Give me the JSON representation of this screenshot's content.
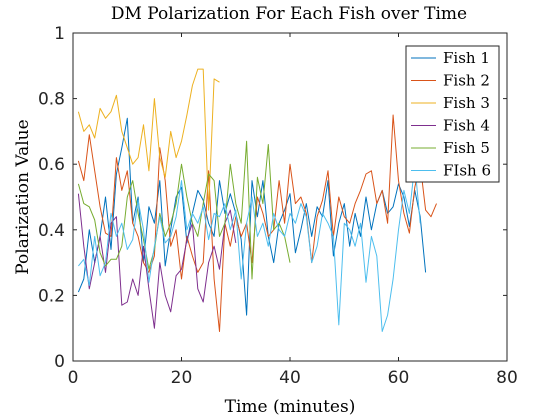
{
  "chart_data": {
    "type": "line",
    "title": "DM Polarization For Each Fish over Time",
    "xlabel": "Time (minutes)",
    "ylabel": "Polarization Value",
    "xlim": [
      0,
      80
    ],
    "ylim": [
      0,
      1
    ],
    "xticks": [
      0,
      20,
      40,
      60,
      80
    ],
    "yticks": [
      0,
      0.2,
      0.4,
      0.6,
      0.8,
      1
    ],
    "xtick_labels": [
      "0",
      "20",
      "40",
      "60",
      "80"
    ],
    "ytick_labels": [
      "0",
      "0.2",
      "0.4",
      "0.6",
      "0.8",
      "1"
    ],
    "grid": false,
    "legend_position": "top-right",
    "series": [
      {
        "name": "Fish 1",
        "color": "#0072BD",
        "x": [
          1,
          2,
          3,
          4,
          5,
          6,
          7,
          8,
          9,
          10,
          11,
          12,
          13,
          14,
          15,
          16,
          17,
          18,
          19,
          20,
          21,
          22,
          23,
          24,
          25,
          26,
          27,
          28,
          29,
          30,
          31,
          32,
          33,
          34,
          35,
          36,
          37,
          38,
          39,
          40,
          41,
          42,
          43,
          44,
          45,
          46,
          47,
          48,
          49,
          50,
          51,
          52,
          53,
          54,
          55,
          56,
          57,
          58,
          59,
          60,
          61,
          62,
          63,
          64,
          65
        ],
        "values": [
          0.21,
          0.25,
          0.4,
          0.3,
          0.38,
          0.5,
          0.34,
          0.57,
          0.65,
          0.74,
          0.42,
          0.5,
          0.3,
          0.47,
          0.42,
          0.55,
          0.29,
          0.4,
          0.5,
          0.53,
          0.36,
          0.45,
          0.52,
          0.49,
          0.42,
          0.38,
          0.55,
          0.45,
          0.51,
          0.45,
          0.37,
          0.14,
          0.55,
          0.44,
          0.55,
          0.38,
          0.3,
          0.42,
          0.46,
          0.51,
          0.33,
          0.4,
          0.48,
          0.38,
          0.47,
          0.44,
          0.55,
          0.32,
          0.42,
          0.48,
          0.35,
          0.45,
          0.38,
          0.5,
          0.4,
          0.48,
          0.52,
          0.45,
          0.47,
          0.54,
          0.5,
          0.41,
          0.52,
          0.44,
          0.27
        ]
      },
      {
        "name": "Fish 2",
        "color": "#D95319",
        "x": [
          1,
          2,
          3,
          4,
          5,
          6,
          7,
          8,
          9,
          10,
          11,
          12,
          13,
          14,
          15,
          16,
          17,
          18,
          19,
          20,
          21,
          22,
          23,
          24,
          25,
          26,
          27,
          28,
          29,
          30,
          31,
          32,
          33,
          34,
          35,
          36,
          37,
          38,
          39,
          40,
          41,
          42,
          43,
          44,
          45,
          46,
          47,
          48,
          49,
          50,
          51,
          52,
          53,
          54,
          55,
          56,
          57,
          58,
          59,
          60,
          61,
          62,
          63,
          64,
          65,
          66,
          67
        ],
        "values": [
          0.61,
          0.55,
          0.69,
          0.58,
          0.47,
          0.39,
          0.38,
          0.62,
          0.52,
          0.58,
          0.42,
          0.38,
          0.3,
          0.27,
          0.32,
          0.65,
          0.55,
          0.35,
          0.4,
          0.25,
          0.38,
          0.32,
          0.27,
          0.3,
          0.58,
          0.25,
          0.09,
          0.42,
          0.35,
          0.44,
          0.38,
          0.42,
          0.3,
          0.5,
          0.45,
          0.38,
          0.4,
          0.55,
          0.42,
          0.6,
          0.48,
          0.5,
          0.45,
          0.3,
          0.44,
          0.49,
          0.58,
          0.38,
          0.5,
          0.44,
          0.42,
          0.48,
          0.52,
          0.57,
          0.58,
          0.48,
          0.52,
          0.42,
          0.75,
          0.55,
          0.45,
          0.39,
          0.53,
          0.6,
          0.46,
          0.44,
          0.48
        ]
      },
      {
        "name": "Fish 3",
        "color": "#EDB120",
        "x": [
          1,
          2,
          3,
          4,
          5,
          6,
          7,
          8,
          9,
          10,
          11,
          12,
          13,
          14,
          15,
          16,
          17,
          18,
          19,
          20,
          21,
          22,
          23,
          24,
          25,
          26,
          27
        ],
        "values": [
          0.76,
          0.7,
          0.72,
          0.68,
          0.77,
          0.74,
          0.76,
          0.81,
          0.7,
          0.65,
          0.6,
          0.62,
          0.72,
          0.58,
          0.8,
          0.62,
          0.56,
          0.7,
          0.62,
          0.67,
          0.75,
          0.84,
          0.89,
          0.89,
          0.46,
          0.86,
          0.85
        ]
      },
      {
        "name": "Fish 4",
        "color": "#7E2F8E",
        "x": [
          1,
          2,
          3,
          4,
          5,
          6,
          7,
          8,
          9,
          10,
          11,
          12,
          13,
          14,
          15,
          16,
          17,
          18,
          19,
          20,
          21,
          22,
          23,
          24,
          25,
          26,
          27,
          28,
          29,
          30
        ],
        "values": [
          0.51,
          0.35,
          0.22,
          0.3,
          0.38,
          0.27,
          0.42,
          0.44,
          0.17,
          0.18,
          0.25,
          0.2,
          0.35,
          0.22,
          0.1,
          0.3,
          0.2,
          0.15,
          0.26,
          0.28,
          0.37,
          0.42,
          0.22,
          0.18,
          0.3,
          0.35,
          0.28,
          0.42,
          0.46,
          0.36
        ]
      },
      {
        "name": "Fish 5",
        "color": "#77AC30",
        "x": [
          1,
          2,
          3,
          4,
          5,
          6,
          7,
          8,
          9,
          10,
          11,
          12,
          13,
          14,
          15,
          16,
          17,
          18,
          19,
          20,
          21,
          22,
          23,
          24,
          25,
          26,
          27,
          28,
          29,
          30,
          31,
          32,
          33,
          34,
          35,
          36,
          37,
          38,
          39,
          40
        ],
        "values": [
          0.54,
          0.48,
          0.47,
          0.43,
          0.33,
          0.29,
          0.31,
          0.31,
          0.35,
          0.5,
          0.55,
          0.45,
          0.37,
          0.28,
          0.34,
          0.45,
          0.38,
          0.42,
          0.48,
          0.6,
          0.5,
          0.42,
          0.38,
          0.48,
          0.57,
          0.55,
          0.38,
          0.42,
          0.6,
          0.48,
          0.42,
          0.67,
          0.25,
          0.56,
          0.48,
          0.66,
          0.4,
          0.42,
          0.38,
          0.3
        ]
      },
      {
        "name": "FIsh 6",
        "color": "#4DBEEE",
        "x": [
          1,
          2,
          3,
          4,
          5,
          6,
          7,
          8,
          9,
          10,
          11,
          12,
          13,
          14,
          15,
          16,
          17,
          18,
          19,
          20,
          21,
          22,
          23,
          24,
          25,
          26,
          27,
          28,
          29,
          30,
          31,
          32,
          33,
          34,
          35,
          36,
          37,
          38,
          39,
          40,
          41,
          42,
          43,
          44,
          45,
          46,
          47,
          48,
          49,
          50,
          51,
          52,
          53,
          54,
          55,
          56,
          57,
          58,
          59,
          60,
          61,
          62,
          63,
          64
        ],
        "values": [
          0.29,
          0.31,
          0.23,
          0.38,
          0.26,
          0.3,
          0.45,
          0.38,
          0.42,
          0.34,
          0.37,
          0.49,
          0.4,
          0.24,
          0.35,
          0.44,
          0.36,
          0.38,
          0.44,
          0.55,
          0.4,
          0.45,
          0.42,
          0.47,
          0.37,
          0.45,
          0.44,
          0.48,
          0.4,
          0.46,
          0.25,
          0.42,
          0.5,
          0.38,
          0.42,
          0.35,
          0.45,
          0.4,
          0.38,
          0.45,
          0.42,
          0.48,
          0.44,
          0.3,
          0.35,
          0.45,
          0.42,
          0.38,
          0.11,
          0.42,
          0.4,
          0.35,
          0.42,
          0.24,
          0.38,
          0.32,
          0.09,
          0.14,
          0.25,
          0.4,
          0.52,
          0.45,
          0.6,
          0.42
        ]
      }
    ]
  }
}
